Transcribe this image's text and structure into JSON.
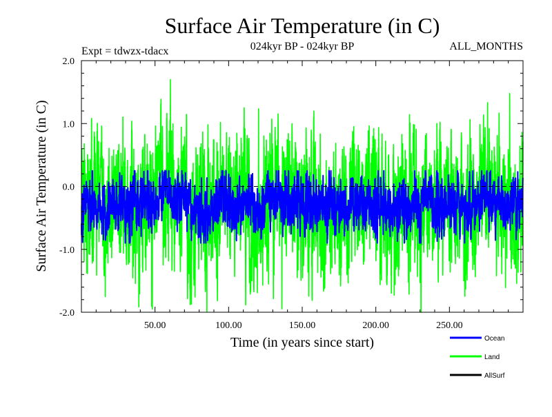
{
  "title": "Surface Air Temperature (in C)",
  "subtitle_left": "Expt = tdwzx-tdacx",
  "subtitle_center": "024kyr BP - 024kyr BP",
  "subtitle_right": "ALL_MONTHS",
  "chart_data": {
    "type": "line",
    "xlabel": "Time (in years since start)",
    "ylabel": "Surface Air Temperature (in C)",
    "xlim": [
      0,
      300
    ],
    "ylim": [
      -2.0,
      2.0
    ],
    "x_ticks": [
      50,
      100,
      150,
      200,
      250
    ],
    "x_tick_labels": [
      "50.00",
      "100.00",
      "150.00",
      "200.00",
      "250.00"
    ],
    "y_ticks": [
      -2.0,
      -1.0,
      0.0,
      1.0,
      2.0
    ],
    "y_tick_labels": [
      "-2.0",
      "-1.0",
      "0.0",
      "1.0",
      "2.0"
    ],
    "reference_line": {
      "y": 0.0,
      "style": "dashed"
    },
    "grid": false,
    "legend_position": "bottom-right",
    "series": [
      {
        "name": "Ocean",
        "color": "#0000ff",
        "mean": -0.3,
        "spread": 0.22,
        "min": -0.9,
        "max": 0.25,
        "samples_per_year": 12
      },
      {
        "name": "Land",
        "color": "#00ff00",
        "mean": -0.3,
        "spread": 0.55,
        "min": -2.0,
        "max": 1.7,
        "samples_per_year": 12
      },
      {
        "name": "AllSurf",
        "color": "#000000"
      }
    ]
  }
}
